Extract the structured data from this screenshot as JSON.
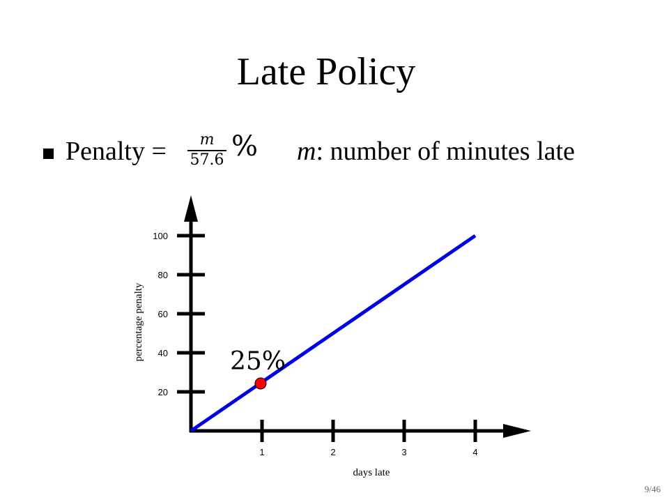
{
  "slide": {
    "title": "Late Policy",
    "bullet": {
      "lead": "Penalty =",
      "fraction_numerator": "m",
      "fraction_denominator": "57.6",
      "percent": "%",
      "definition_var": "m",
      "definition_text": ": number of minutes late"
    },
    "page_number": "9/46"
  },
  "colors": {
    "line": "#0000e6",
    "marker": "#ff0000",
    "axis": "#000000"
  },
  "chart_data": {
    "type": "line",
    "title": "",
    "xlabel": "days late",
    "ylabel": "percentage penalty",
    "xlim": [
      0,
      4
    ],
    "ylim": [
      0,
      100
    ],
    "x_ticks": [
      1,
      2,
      3,
      4
    ],
    "y_ticks": [
      20,
      40,
      60,
      80,
      100
    ],
    "grid": false,
    "legend": "none",
    "series": [
      {
        "x": [
          0,
          4
        ],
        "y": [
          0,
          100
        ]
      }
    ],
    "highlight": {
      "x": 1,
      "y": 25,
      "label": "25%"
    }
  }
}
